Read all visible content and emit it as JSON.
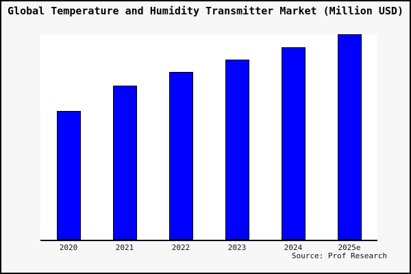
{
  "header": {
    "title": "Global Temperature and Humidity Transmitter Market (Million USD)"
  },
  "footer": {
    "source_label": "Source: Prof Research"
  },
  "colors": {
    "bar_fill": "#0000ff",
    "bar_border": "#000000",
    "window_background": "#f7f7f7",
    "plot_background": "#ffffff",
    "axis_line": "#000000",
    "window_border": "#000000"
  },
  "chart_data": {
    "type": "bar",
    "title": "Global Temperature and Humidity Transmitter Market (Million USD)",
    "categories": [
      "2020",
      "2021",
      "2022",
      "2023",
      "2024",
      "2025e"
    ],
    "values": [
      188,
      225,
      245,
      263,
      281,
      300
    ],
    "xlabel": "",
    "ylabel": "",
    "ylim": [
      0,
      300
    ],
    "grid": false,
    "legend": false,
    "y_axis_tick_labels_visible": false,
    "annotations": [
      "Source: Prof Research"
    ]
  }
}
